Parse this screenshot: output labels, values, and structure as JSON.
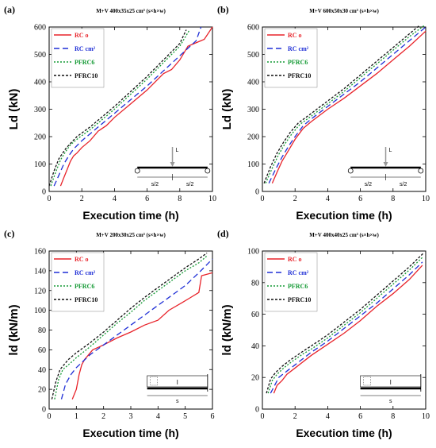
{
  "colors": {
    "rc": "#e8232a",
    "rccm": "#1f2fd6",
    "pfrc6": "#159a35",
    "pfrc10": "#111111"
  },
  "legend_labels": [
    "RC o",
    "RC cm²",
    "PFRC6",
    "PFRC10"
  ],
  "chart_data": [
    {
      "type": "line",
      "panel": "(a)",
      "title": "M+V 400x35x25 cm³ (s×h×w)",
      "xlabel": "Execution time (h)",
      "ylabel": "Ld (kN)",
      "xlim": [
        0,
        10
      ],
      "ylim": [
        0,
        600
      ],
      "xticks": [
        0,
        2,
        4,
        6,
        8,
        10
      ],
      "yticks": [
        0,
        100,
        200,
        300,
        400,
        500,
        600
      ],
      "legend": "top-left",
      "diagram": {
        "type": "point-load",
        "labels": [
          "L",
          "s/2",
          "s/2"
        ]
      },
      "series": [
        {
          "name": "RC o",
          "key": "rc",
          "x": [
            0.7,
            0.9,
            1.1,
            1.3,
            1.5,
            1.7,
            2.0,
            2.5,
            3.0,
            3.5,
            4.0,
            5.0,
            6.0,
            7.0,
            7.5,
            8.0,
            8.5,
            9.5,
            10.0
          ],
          "y": [
            20,
            50,
            80,
            110,
            130,
            140,
            160,
            185,
            220,
            240,
            270,
            320,
            370,
            430,
            445,
            480,
            530,
            555,
            600
          ]
        },
        {
          "name": "RC cm²",
          "key": "rccm",
          "x": [
            0.3,
            0.6,
            0.9,
            1.2,
            1.5,
            2.0,
            2.5,
            3.0,
            4.0,
            5.0,
            6.0,
            7.0,
            8.0,
            9.0,
            9.3
          ],
          "y": [
            20,
            60,
            100,
            130,
            155,
            185,
            210,
            235,
            285,
            335,
            385,
            440,
            495,
            550,
            600
          ]
        },
        {
          "name": "PFRC6",
          "key": "pfrc6",
          "x": [
            0.1,
            0.4,
            0.7,
            1.0,
            1.3,
            1.8,
            2.5,
            3.0,
            4.0,
            5.0,
            6.0,
            7.0,
            8.0,
            8.6
          ],
          "y": [
            20,
            70,
            115,
            145,
            170,
            195,
            225,
            250,
            300,
            355,
            410,
            470,
            530,
            590
          ]
        },
        {
          "name": "PFRC10",
          "key": "pfrc10",
          "x": [
            0.0,
            0.3,
            0.6,
            1.0,
            1.3,
            1.7,
            2.5,
            3.0,
            4.0,
            5.0,
            6.0,
            7.0,
            8.0,
            8.4
          ],
          "y": [
            20,
            75,
            120,
            155,
            175,
            200,
            235,
            260,
            310,
            365,
            420,
            480,
            540,
            590
          ]
        }
      ]
    },
    {
      "type": "line",
      "panel": "(b)",
      "title": "M+V 600x50x30 cm³ (s×h×w)",
      "xlabel": "Execution time (h)",
      "ylabel": "Ld (kN)",
      "xlim": [
        0,
        10
      ],
      "ylim": [
        0,
        600
      ],
      "xticks": [
        0,
        2,
        4,
        6,
        8,
        10
      ],
      "yticks": [
        0,
        100,
        200,
        300,
        400,
        500,
        600
      ],
      "legend": "top-left",
      "diagram": {
        "type": "point-load",
        "labels": [
          "L",
          "s/2",
          "s/2"
        ]
      },
      "series": [
        {
          "name": "RC o",
          "key": "rc",
          "x": [
            0.6,
            0.9,
            1.2,
            1.6,
            2.0,
            2.5,
            3.0,
            4.0,
            5.0,
            6.0,
            7.0,
            8.0,
            9.0,
            10.0
          ],
          "y": [
            30,
            70,
            110,
            150,
            190,
            230,
            255,
            300,
            340,
            385,
            430,
            480,
            530,
            585
          ]
        },
        {
          "name": "RC cm²",
          "key": "rccm",
          "x": [
            0.4,
            0.8,
            1.2,
            1.6,
            2.0,
            2.5,
            3.0,
            4.0,
            5.0,
            6.0,
            7.0,
            8.0,
            9.0,
            10.0
          ],
          "y": [
            30,
            80,
            125,
            165,
            200,
            240,
            265,
            310,
            355,
            400,
            450,
            500,
            550,
            600
          ]
        },
        {
          "name": "PFRC6",
          "key": "pfrc6",
          "x": [
            0.2,
            0.6,
            1.0,
            1.4,
            1.8,
            2.3,
            3.0,
            4.0,
            5.0,
            6.0,
            7.0,
            8.0,
            9.0,
            9.9
          ],
          "y": [
            30,
            85,
            135,
            175,
            210,
            245,
            275,
            320,
            365,
            415,
            465,
            515,
            565,
            605
          ]
        },
        {
          "name": "PFRC10",
          "key": "pfrc10",
          "x": [
            0.1,
            0.5,
            0.9,
            1.3,
            1.7,
            2.2,
            3.0,
            4.0,
            5.0,
            6.0,
            7.0,
            8.0,
            9.0,
            9.6
          ],
          "y": [
            30,
            90,
            140,
            180,
            215,
            250,
            285,
            330,
            375,
            425,
            475,
            525,
            575,
            605
          ]
        }
      ]
    },
    {
      "type": "line",
      "panel": "(c)",
      "title": "M+V 200x30x25 cm³ (s×h×w)",
      "xlabel": "Execution time (h)",
      "ylabel": "ld (kN/m)",
      "xlim": [
        0,
        6
      ],
      "ylim": [
        0,
        160
      ],
      "xticks": [
        0,
        1,
        2,
        3,
        4,
        5,
        6
      ],
      "yticks": [
        0,
        20,
        40,
        60,
        80,
        100,
        120,
        140,
        160
      ],
      "legend": "top-left",
      "diagram": {
        "type": "distributed-load",
        "labels": [
          "l",
          "s"
        ]
      },
      "series": [
        {
          "name": "RC o",
          "key": "rc",
          "x": [
            0.85,
            1.0,
            1.1,
            1.2,
            1.3,
            1.45,
            1.6,
            2.0,
            2.5,
            3.0,
            3.5,
            4.0,
            4.4,
            4.9,
            5.2,
            5.5,
            5.6,
            6.0
          ],
          "y": [
            10,
            20,
            35,
            45,
            50,
            55,
            60,
            65,
            72,
            78,
            85,
            90,
            100,
            108,
            113,
            118,
            135,
            138
          ]
        },
        {
          "name": "RC cm²",
          "key": "rccm",
          "x": [
            0.45,
            0.6,
            0.8,
            1.0,
            1.5,
            2.0,
            2.5,
            3.0,
            3.5,
            4.0,
            4.5,
            5.0,
            5.5,
            6.0
          ],
          "y": [
            10,
            25,
            35,
            42,
            55,
            65,
            75,
            85,
            95,
            105,
            115,
            125,
            138,
            152
          ]
        },
        {
          "name": "PFRC6",
          "key": "pfrc6",
          "x": [
            0.2,
            0.35,
            0.5,
            0.8,
            1.0,
            1.5,
            2.0,
            2.5,
            3.0,
            3.5,
            4.0,
            4.5,
            5.0,
            5.5,
            5.8
          ],
          "y": [
            10,
            30,
            40,
            47,
            52,
            63,
            75,
            87,
            98,
            110,
            120,
            130,
            140,
            148,
            155
          ]
        },
        {
          "name": "PFRC10",
          "key": "pfrc10",
          "x": [
            0.1,
            0.25,
            0.4,
            0.7,
            1.0,
            1.5,
            2.0,
            2.5,
            3.0,
            3.5,
            4.0,
            4.5,
            5.0,
            5.5,
            5.8
          ],
          "y": [
            10,
            28,
            40,
            50,
            57,
            67,
            78,
            90,
            102,
            113,
            123,
            133,
            143,
            152,
            158
          ]
        }
      ]
    },
    {
      "type": "line",
      "panel": "(d)",
      "title": "M+V 400x40x25 cm³ (s×h×w)",
      "xlabel": "Execution time (h)",
      "ylabel": "ld (kN/m)",
      "xlim": [
        0,
        10
      ],
      "ylim": [
        0,
        100
      ],
      "xticks": [
        0,
        2,
        4,
        6,
        8,
        10
      ],
      "yticks": [
        0,
        20,
        40,
        60,
        80,
        100
      ],
      "legend": "top-left",
      "diagram": {
        "type": "distributed-load",
        "labels": [
          "l",
          "s"
        ]
      },
      "series": [
        {
          "name": "RC o",
          "key": "rc",
          "x": [
            0.7,
            0.9,
            1.2,
            1.5,
            2.0,
            2.5,
            3.0,
            4.0,
            5.0,
            6.0,
            7.0,
            8.0,
            9.0,
            9.8
          ],
          "y": [
            10,
            15,
            18,
            22,
            26,
            30,
            34,
            41,
            48,
            56,
            65,
            73,
            82,
            91
          ]
        },
        {
          "name": "RC cm²",
          "key": "rccm",
          "x": [
            0.5,
            0.8,
            1.0,
            1.5,
            2.0,
            2.5,
            3.0,
            4.0,
            5.0,
            6.0,
            7.0,
            8.0,
            9.0,
            9.8
          ],
          "y": [
            10,
            16,
            20,
            24,
            28,
            32,
            36,
            43,
            51,
            59,
            67,
            76,
            85,
            93
          ]
        },
        {
          "name": "PFRC6",
          "key": "pfrc6",
          "x": [
            0.35,
            0.6,
            0.9,
            1.3,
            1.8,
            2.5,
            3.0,
            4.0,
            5.0,
            6.0,
            7.0,
            8.0,
            9.0,
            9.8
          ],
          "y": [
            10,
            18,
            22,
            26,
            30,
            35,
            38,
            45,
            53,
            61,
            70,
            79,
            88,
            96
          ]
        },
        {
          "name": "PFRC10",
          "key": "pfrc10",
          "x": [
            0.25,
            0.5,
            0.8,
            1.2,
            1.7,
            2.4,
            3.0,
            4.0,
            5.0,
            6.0,
            7.0,
            8.0,
            9.0,
            9.9
          ],
          "y": [
            10,
            19,
            23,
            27,
            31,
            36,
            40,
            47,
            55,
            63,
            72,
            81,
            90,
            99
          ]
        }
      ]
    }
  ]
}
